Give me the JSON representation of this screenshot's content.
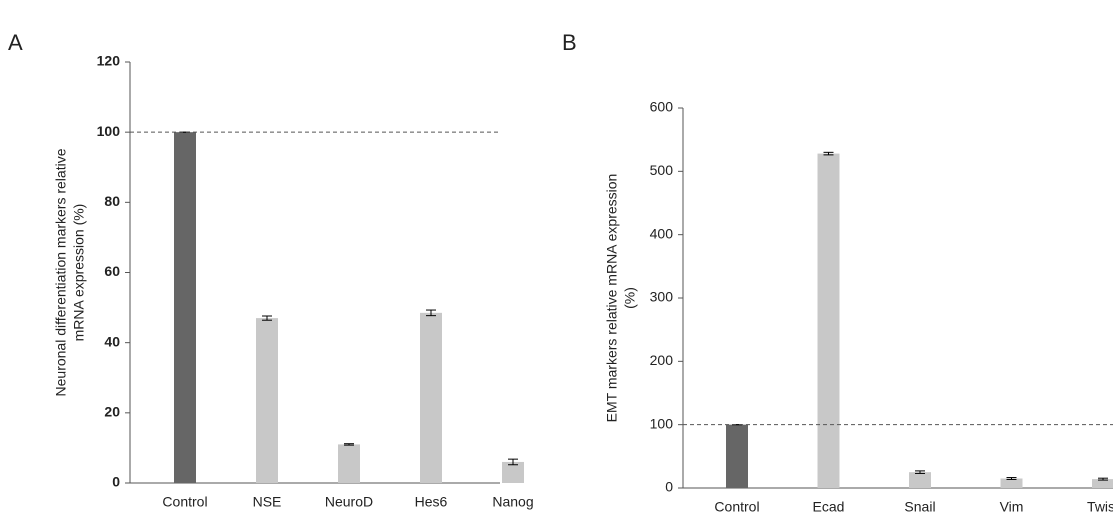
{
  "chart_data": [
    {
      "type": "bar",
      "panel": "A",
      "ylabel": [
        "Neuronal differentiation markers relative",
        "mRNA expression (%)"
      ],
      "categories": [
        "Control",
        "NSE",
        "NeuroD",
        "Hes6",
        "Nanog"
      ],
      "values": [
        100,
        47,
        11,
        48.5,
        6
      ],
      "errors": [
        0,
        0.6,
        0.2,
        0.8,
        0.8
      ],
      "colors": [
        "#666666",
        "#c8c8c8",
        "#c8c8c8",
        "#c8c8c8",
        "#c8c8c8"
      ],
      "ylim": [
        0,
        120
      ],
      "yticks": [
        0,
        20,
        40,
        60,
        80,
        100,
        120
      ],
      "reference_line": 100,
      "bold_ticks": true
    },
    {
      "type": "bar",
      "panel": "B",
      "ylabel": [
        "EMT markers relative mRNA expression",
        "(%)"
      ],
      "categories": [
        "Control",
        "Ecad",
        "Snail",
        "Vim",
        "Twist"
      ],
      "values": [
        100,
        528,
        25,
        15,
        14
      ],
      "errors": [
        0,
        2,
        2,
        1.5,
        1.5
      ],
      "colors": [
        "#666666",
        "#c8c8c8",
        "#c8c8c8",
        "#c8c8c8",
        "#c8c8c8"
      ],
      "ylim": [
        0,
        600
      ],
      "yticks": [
        0,
        100,
        200,
        300,
        400,
        500,
        600
      ],
      "reference_line": 100,
      "bold_ticks": false
    }
  ]
}
